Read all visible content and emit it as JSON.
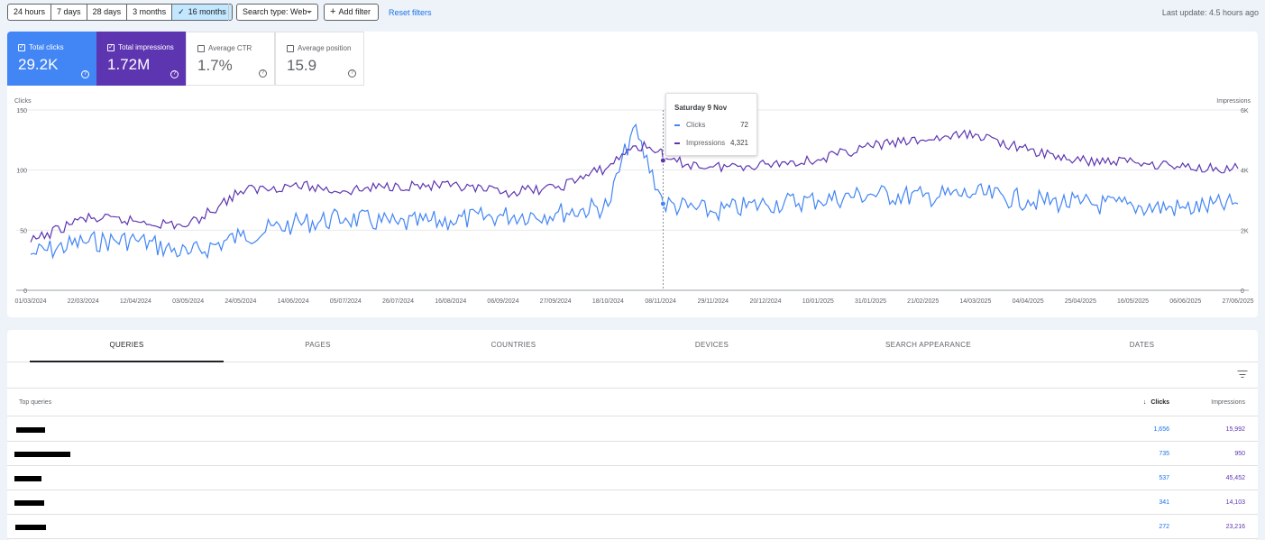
{
  "toolbar": {
    "ranges": [
      {
        "label": "24 hours",
        "active": false
      },
      {
        "label": "7 days",
        "active": false
      },
      {
        "label": "28 days",
        "active": false
      },
      {
        "label": "3 months",
        "active": false
      },
      {
        "label": "16 months",
        "active": true
      }
    ],
    "active_check": "✓",
    "search_type": "Search type: Web",
    "add_filter": "Add filter",
    "reset_filters": "Reset filters",
    "last_update": "Last update: 4.5 hours ago"
  },
  "metrics": {
    "clicks": {
      "label": "Total clicks",
      "value": "29.2K",
      "checked": true
    },
    "impressions": {
      "label": "Total impressions",
      "value": "1.72M",
      "checked": true
    },
    "ctr": {
      "label": "Average CTR",
      "value": "1.7%",
      "checked": false
    },
    "position": {
      "label": "Average position",
      "value": "15.9",
      "checked": false
    },
    "help_glyph": "?",
    "check_glyph": "✓"
  },
  "tooltip": {
    "title": "Saturday 9 Nov",
    "clicks_label": "Clicks",
    "clicks_value": "72",
    "impressions_label": "Impressions",
    "impressions_value": "4,321"
  },
  "chart_data": {
    "type": "line",
    "ylabel_left": "Clicks",
    "ylabel_right": "Impressions",
    "y_left_ticks": [
      "0",
      "50",
      "100",
      "150"
    ],
    "y_right_ticks": [
      "0",
      "2K",
      "4K",
      "6K"
    ],
    "ylim_left": [
      0,
      150
    ],
    "ylim_right": [
      0,
      6000
    ],
    "x_ticks": [
      "01/03/2024",
      "22/03/2024",
      "12/04/2024",
      "03/05/2024",
      "24/05/2024",
      "14/06/2024",
      "05/07/2024",
      "26/07/2024",
      "16/08/2024",
      "06/09/2024",
      "27/09/2024",
      "18/10/2024",
      "08/11/2024",
      "29/11/2024",
      "20/12/2024",
      "10/01/2025",
      "31/01/2025",
      "21/02/2025",
      "14/03/2025",
      "04/04/2025",
      "25/04/2025",
      "16/05/2025",
      "06/06/2025",
      "27/06/2025"
    ],
    "highlight_date": "09/11/2024",
    "grid": true,
    "series": [
      {
        "name": "Clicks",
        "color": "#4285f4",
        "axis": "left",
        "x": [
          "01/03/2024",
          "22/03/2024",
          "12/04/2024",
          "03/05/2024",
          "24/05/2024",
          "14/06/2024",
          "05/07/2024",
          "26/07/2024",
          "16/08/2024",
          "06/09/2024",
          "27/09/2024",
          "18/10/2024",
          "28/10/2024",
          "08/11/2024",
          "09/11/2024",
          "29/11/2024",
          "20/12/2024",
          "10/01/2025",
          "31/01/2025",
          "21/02/2025",
          "14/03/2025",
          "04/04/2025",
          "25/04/2025",
          "16/05/2025",
          "06/06/2025",
          "27/06/2025"
        ],
        "values": [
          30,
          40,
          42,
          30,
          45,
          55,
          60,
          55,
          58,
          62,
          64,
          70,
          135,
          80,
          72,
          65,
          72,
          75,
          80,
          78,
          80,
          75,
          72,
          70,
          68,
          72
        ]
      },
      {
        "name": "Impressions",
        "color": "#5e35b1",
        "axis": "right",
        "x": [
          "01/03/2024",
          "22/03/2024",
          "12/04/2024",
          "03/05/2024",
          "24/05/2024",
          "14/06/2024",
          "05/07/2024",
          "26/07/2024",
          "16/08/2024",
          "06/09/2024",
          "27/09/2024",
          "18/10/2024",
          "28/10/2024",
          "08/11/2024",
          "09/11/2024",
          "29/11/2024",
          "20/12/2024",
          "10/01/2025",
          "31/01/2025",
          "21/02/2025",
          "14/03/2025",
          "04/04/2025",
          "25/04/2025",
          "16/05/2025",
          "06/06/2025",
          "27/06/2025"
        ],
        "values": [
          1600,
          2400,
          2300,
          2150,
          3300,
          3500,
          3300,
          3500,
          3450,
          3250,
          3400,
          4100,
          4800,
          4700,
          4321,
          4100,
          4200,
          4350,
          4800,
          5000,
          5200,
          4650,
          4300,
          4300,
          4100,
          4050
        ]
      }
    ]
  },
  "tabs": [
    "QUERIES",
    "PAGES",
    "COUNTRIES",
    "DEVICES",
    "SEARCH APPEARANCE",
    "DATES"
  ],
  "table": {
    "col_query": "Top queries",
    "col_clicks": "Clicks",
    "col_impressions": "Impressions",
    "sort_arrow": "↓",
    "rows": [
      {
        "clicks": "1,656",
        "impressions": "15,992"
      },
      {
        "clicks": "735",
        "impressions": "950"
      },
      {
        "clicks": "537",
        "impressions": "45,452"
      },
      {
        "clicks": "341",
        "impressions": "14,103"
      },
      {
        "clicks": "272",
        "impressions": "23,216"
      }
    ]
  }
}
